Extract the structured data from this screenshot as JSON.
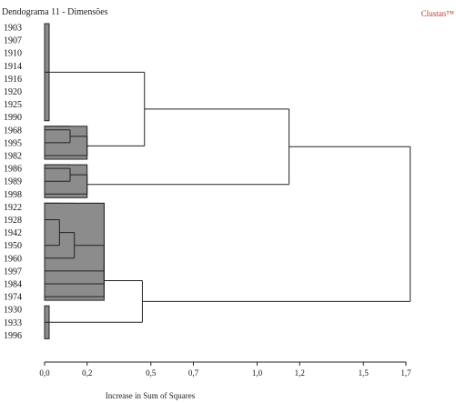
{
  "title": "Dendograma 11 - Dimensões",
  "brand": "Clustan™",
  "chart_data": {
    "type": "dendrogram",
    "xlabel": "Increase in Sum of Squares",
    "xticks": [
      "0,0",
      "0,2",
      "0,5",
      "0,7",
      "1,0",
      "1,2",
      "1,5",
      "1,7"
    ],
    "xtick_values": [
      0.0,
      0.2,
      0.5,
      0.7,
      1.0,
      1.2,
      1.5,
      1.7
    ],
    "xlim": [
      0,
      1.7
    ],
    "leaves": [
      "1903",
      "1907",
      "1910",
      "1914",
      "1916",
      "1920",
      "1925",
      "1990",
      "1968",
      "1995",
      "1982",
      "1986",
      "1989",
      "1998",
      "1922",
      "1928",
      "1942",
      "1950",
      "1960",
      "1997",
      "1984",
      "1974",
      "1930",
      "1933",
      "1996"
    ],
    "merges": [
      {
        "id": "A",
        "children": [
          "L0",
          "L1",
          "L2",
          "L3",
          "L4",
          "L5",
          "L6",
          "L7"
        ],
        "height": 0.0
      },
      {
        "id": "B1",
        "children": [
          "L8",
          "L9"
        ],
        "height": 0.12
      },
      {
        "id": "B",
        "children": [
          "B1",
          "L10"
        ],
        "height": 0.2
      },
      {
        "id": "AB",
        "children": [
          "A",
          "B"
        ],
        "height": 0.47
      },
      {
        "id": "C1",
        "children": [
          "L11",
          "L12"
        ],
        "height": 0.12
      },
      {
        "id": "C",
        "children": [
          "C1",
          "L13"
        ],
        "height": 0.2
      },
      {
        "id": "ABC",
        "children": [
          "AB",
          "C"
        ],
        "height": 1.15
      },
      {
        "id": "D0",
        "children": [
          "L14",
          "L15",
          "L16"
        ],
        "height": 0.0
      },
      {
        "id": "D1",
        "children": [
          "D0",
          "L17"
        ],
        "height": 0.07
      },
      {
        "id": "D2",
        "children": [
          "D1",
          "L18"
        ],
        "height": 0.14
      },
      {
        "id": "D3",
        "children": [
          "D2",
          "L19",
          "L20"
        ],
        "height": 0.28
      },
      {
        "id": "D",
        "children": [
          "D3",
          "L21"
        ],
        "height": 0.28
      },
      {
        "id": "E",
        "children": [
          "L22",
          "L23",
          "L24"
        ],
        "height": 0.0
      },
      {
        "id": "DE",
        "children": [
          "D",
          "E"
        ],
        "height": 0.46
      },
      {
        "id": "ROOT",
        "children": [
          "ABC",
          "DE"
        ],
        "height": 1.72
      }
    ]
  }
}
